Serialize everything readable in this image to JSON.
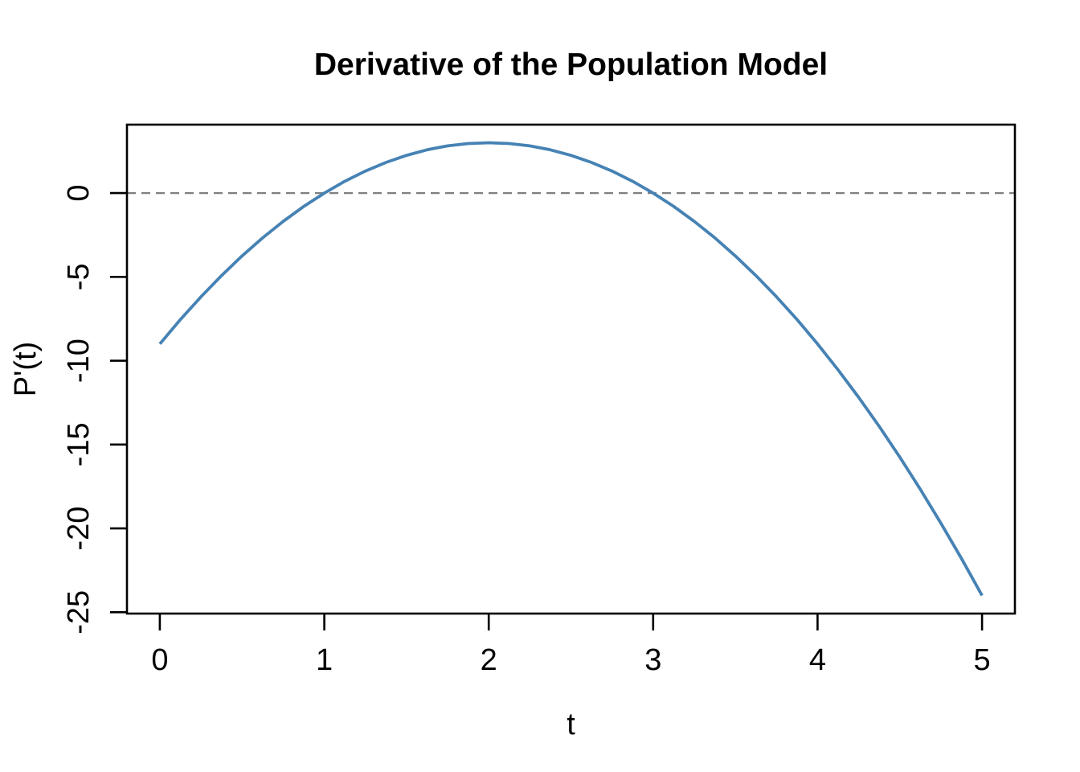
{
  "chart_data": {
    "type": "line",
    "title": "Derivative of the Population Model",
    "xlabel": "t",
    "ylabel": "P'(t)",
    "x_ticks": [
      0,
      1,
      2,
      3,
      4,
      5
    ],
    "y_ticks": [
      0,
      -5,
      -10,
      -15,
      -20,
      -25
    ],
    "xlim": [
      -0.2,
      5.2
    ],
    "ylim": [
      -25.08,
      4.08
    ],
    "grid": false,
    "legend": "none",
    "background_color": "#ffffff",
    "axis_color": "#000000",
    "series": [
      {
        "name": "P'(t)",
        "color": "#4682B4",
        "x": [
          0,
          0.125,
          0.25,
          0.375,
          0.5,
          0.625,
          0.75,
          0.875,
          1,
          1.125,
          1.25,
          1.375,
          1.5,
          1.625,
          1.75,
          1.875,
          2,
          2.125,
          2.25,
          2.375,
          2.5,
          2.625,
          2.75,
          2.875,
          3,
          3.125,
          3.25,
          3.375,
          3.5,
          3.625,
          3.75,
          3.875,
          4,
          4.125,
          4.25,
          4.375,
          4.5,
          4.625,
          4.75,
          4.875,
          5
        ],
        "y": [
          -9,
          -7.546875,
          -6.1875,
          -4.921875,
          -3.75,
          -2.671875,
          -1.6875,
          -0.796875,
          0,
          0.703125,
          1.3125,
          1.828125,
          2.25,
          2.578125,
          2.8125,
          2.953125,
          3,
          2.953125,
          2.8125,
          2.578125,
          2.25,
          1.828125,
          1.3125,
          0.703125,
          0,
          -0.796875,
          -1.6875,
          -2.671875,
          -3.75,
          -4.921875,
          -6.1875,
          -7.546875,
          -9,
          -10.546875,
          -12.1875,
          -13.921875,
          -15.75,
          -17.671875,
          -19.6875,
          -21.796875,
          -24
        ]
      }
    ],
    "reference_lines": [
      {
        "axis": "y",
        "value": 0,
        "style": "dashed",
        "color": "#808080"
      }
    ]
  }
}
